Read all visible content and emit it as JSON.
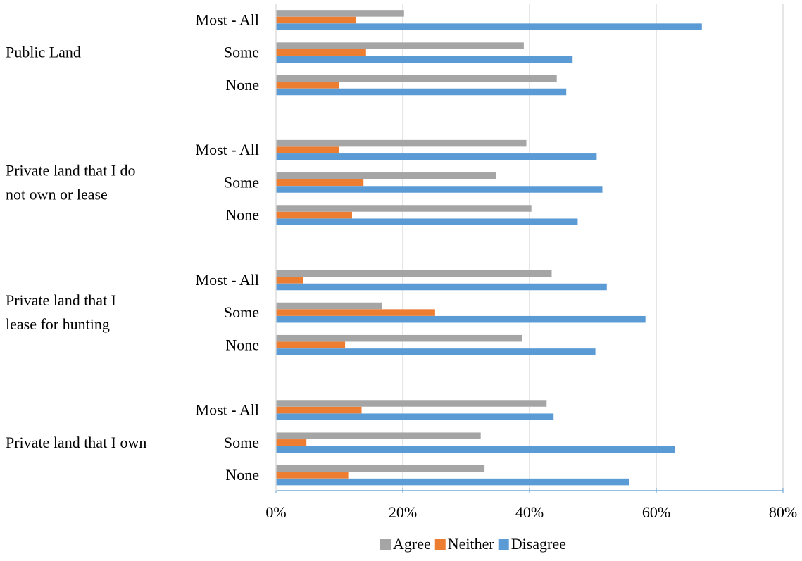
{
  "chart_data": {
    "type": "bar",
    "orientation": "horizontal",
    "groups": [
      {
        "label_lines": [
          "Public Land"
        ],
        "categories": [
          {
            "label": "Most - All",
            "values": {
              "Agree": 20.2,
              "Neither": 12.6,
              "Disagree": 67.2
            }
          },
          {
            "label": "Some",
            "values": {
              "Agree": 39.1,
              "Neither": 14.2,
              "Disagree": 46.8
            }
          },
          {
            "label": "None",
            "values": {
              "Agree": 44.3,
              "Neither": 9.9,
              "Disagree": 45.8
            }
          }
        ]
      },
      {
        "label_lines": [
          "Private land that I do",
          "not own or lease"
        ],
        "categories": [
          {
            "label": "Most - All",
            "values": {
              "Agree": 39.5,
              "Neither": 9.9,
              "Disagree": 50.6
            }
          },
          {
            "label": "Some",
            "values": {
              "Agree": 34.7,
              "Neither": 13.8,
              "Disagree": 51.5
            }
          },
          {
            "label": "None",
            "values": {
              "Agree": 40.3,
              "Neither": 12.0,
              "Disagree": 47.6
            }
          }
        ]
      },
      {
        "label_lines": [
          "Private land that I",
          "lease for hunting"
        ],
        "categories": [
          {
            "label": "Most - All",
            "values": {
              "Agree": 43.5,
              "Neither": 4.3,
              "Disagree": 52.2
            }
          },
          {
            "label": "Some",
            "values": {
              "Agree": 16.7,
              "Neither": 25.1,
              "Disagree": 58.3
            }
          },
          {
            "label": "None",
            "values": {
              "Agree": 38.8,
              "Neither": 10.9,
              "Disagree": 50.4
            }
          }
        ]
      },
      {
        "label_lines": [
          "Private land that I own"
        ],
        "categories": [
          {
            "label": "Most - All",
            "values": {
              "Agree": 42.7,
              "Neither": 13.5,
              "Disagree": 43.8
            }
          },
          {
            "label": "Some",
            "values": {
              "Agree": 32.3,
              "Neither": 4.8,
              "Disagree": 62.9
            }
          },
          {
            "label": "None",
            "values": {
              "Agree": 32.9,
              "Neither": 11.4,
              "Disagree": 55.7
            }
          }
        ]
      }
    ],
    "series": [
      {
        "name": "Agree",
        "color": "#A5A5A5"
      },
      {
        "name": "Neither",
        "color": "#ED7D31"
      },
      {
        "name": "Disagree",
        "color": "#5B9BD5"
      }
    ],
    "x_ticks": [
      "0%",
      "20%",
      "40%",
      "60%",
      "80%"
    ],
    "xlim": [
      0,
      80
    ],
    "x_unit": "percent",
    "grid": true,
    "legend_position": "bottom"
  }
}
